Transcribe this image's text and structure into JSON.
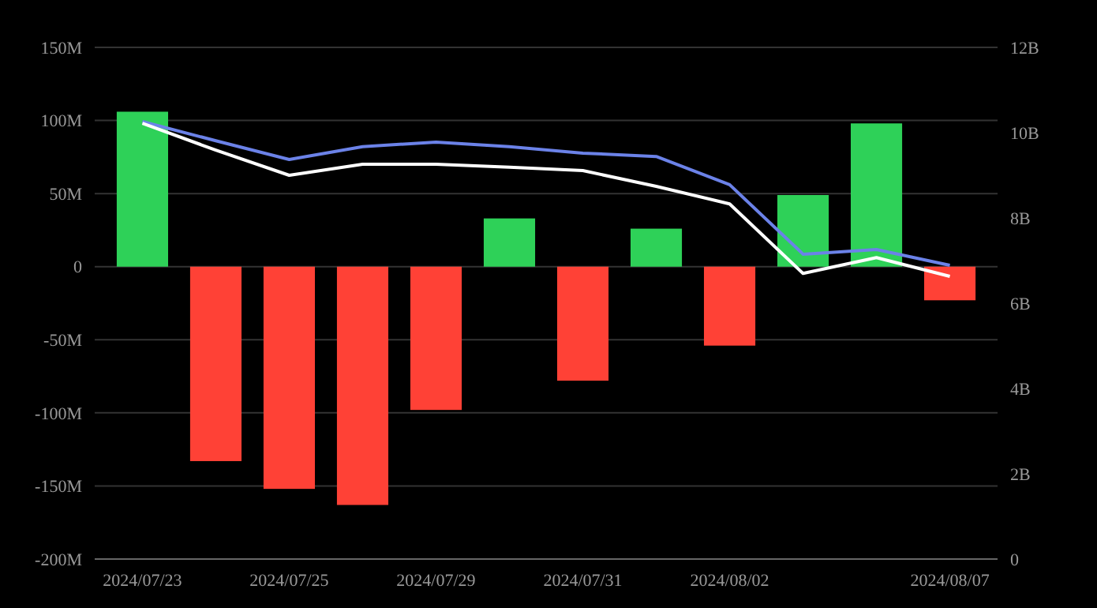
{
  "chart_data": {
    "type": "bar",
    "categories": [
      "2024/07/23",
      null,
      "2024/07/25",
      null,
      "2024/07/29",
      null,
      "2024/07/31",
      null,
      "2024/08/02",
      null,
      null,
      "2024/08/07"
    ],
    "series": [
      {
        "colors": [
          "#2ed158",
          "#ff4136",
          "#ff4136",
          "#ff4136",
          "#ff4136",
          "#2ed158",
          "#ff4136",
          "#2ed158",
          "#ff4136",
          "#2ed158",
          "#2ed158",
          "#ff4136"
        ],
        "values": [
          106,
          -133,
          -152,
          -163,
          -98,
          33,
          -78,
          26,
          -54,
          49,
          98,
          -23
        ]
      },
      {
        "type": "line",
        "axis": "y2",
        "color": "#6b82e8",
        "values": [
          10.26,
          9.81,
          9.37,
          9.67,
          9.78,
          9.67,
          9.52,
          9.44,
          8.78,
          7.15,
          7.26,
          6.89
        ]
      },
      {
        "type": "line",
        "axis": "y2",
        "color": "#ffffff",
        "values": [
          10.22,
          9.59,
          9.0,
          9.26,
          9.26,
          9.19,
          9.11,
          8.74,
          8.33,
          6.7,
          7.07,
          6.63
        ]
      }
    ],
    "ylim": [
      -200,
      150
    ],
    "yticks": [
      {
        "value": -200,
        "label": "-200M"
      },
      {
        "value": -150,
        "label": "-150M"
      },
      {
        "value": -100,
        "label": "-100M"
      },
      {
        "value": -50,
        "label": "-50M"
      },
      {
        "value": 0,
        "label": "0"
      },
      {
        "value": 50,
        "label": "50M"
      },
      {
        "value": 100,
        "label": "100M"
      },
      {
        "value": 150,
        "label": "150M"
      }
    ],
    "y2lim": [
      0,
      12
    ],
    "y2ticks": [
      0,
      {
        "value": 2,
        "label": "2B"
      },
      {
        "value": 4,
        "label": "4B"
      },
      {
        "value": 6,
        "label": "6B"
      },
      {
        "value": 8,
        "label": "8B"
      },
      {
        "value": 10,
        "label": "10B"
      },
      {
        "value": 12,
        "label": "12B"
      }
    ],
    "grid": "y"
  }
}
